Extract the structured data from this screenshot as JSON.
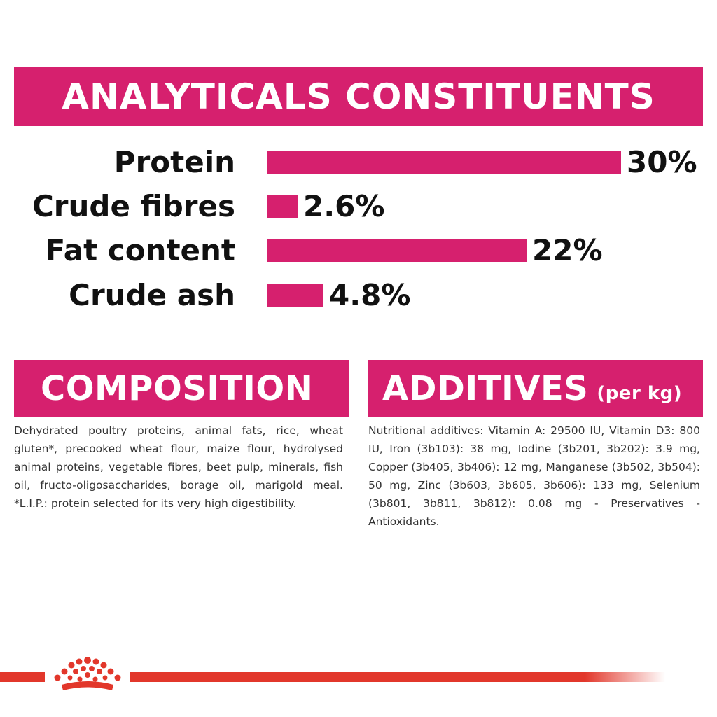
{
  "analytics": {
    "title": "ANALYTICALS CONSTITUENTS",
    "bar_max_percent": 30,
    "items": [
      {
        "label": "Protein",
        "value": "30%",
        "percent": 30
      },
      {
        "label": "Crude fibres",
        "value": "2.6%",
        "percent": 2.6
      },
      {
        "label": "Fat content",
        "value": "22%",
        "percent": 22
      },
      {
        "label": "Crude ash",
        "value": "4.8%",
        "percent": 4.8
      }
    ]
  },
  "composition": {
    "title": "COMPOSITION",
    "text": "Dehydrated poultry proteins, animal fats, rice, wheat gluten*, precooked wheat flour, maize flour, hydrolysed animal proteins, vegetable fibres, beet pulp, minerals, fish oil, fructo-oligosaccharides, borage oil, marigold meal. *L.I.P.: protein selected for its very high digestibility."
  },
  "additives": {
    "title": "ADDITIVES",
    "title_suffix": "(per kg)",
    "text": "Nutritional additives: Vitamin A: 29500 IU, Vitamin D3: 800 IU, Iron (3b103): 38 mg, Iodine (3b201, 3b202): 3.9 mg, Copper (3b405, 3b406): 12 mg, Manganese (3b502, 3b504): 50 mg, Zinc (3b603, 3b605, 3b606): 133 mg, Selenium (3b801, 3b811, 3b812): 0.08 mg - Preservatives - Antioxidants."
  },
  "colors": {
    "brand_pink": "#d6206e",
    "footer_red": "#e2372b"
  },
  "footer": {
    "logo_icon": "royal-canin-crown-icon"
  }
}
